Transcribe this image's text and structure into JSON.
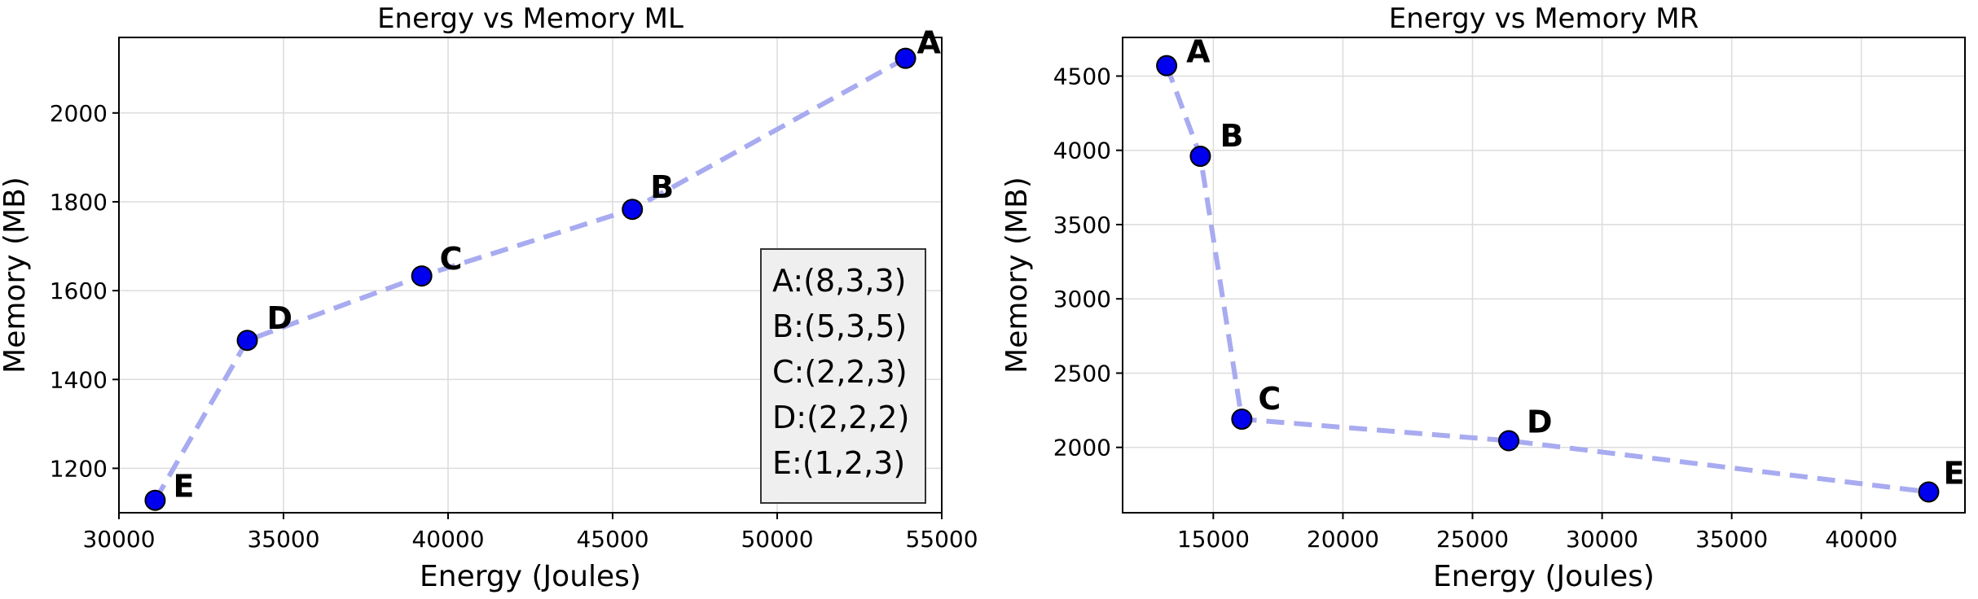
{
  "chart_data": [
    {
      "type": "scatter",
      "title": "Energy vs Memory ML",
      "xlabel": "Energy (Joules)",
      "ylabel": "Memory (MB)",
      "xlim": [
        30000,
        55000
      ],
      "ylim": [
        1100,
        2170
      ],
      "xticks": [
        30000,
        35000,
        40000,
        45000,
        50000,
        55000
      ],
      "yticks": [
        1200,
        1400,
        1600,
        1800,
        2000
      ],
      "grid": true,
      "point_color": "#0000ee",
      "line_color": "#a8abf0",
      "points": [
        {
          "label": "E",
          "x": 31100,
          "y": 1128
        },
        {
          "label": "D",
          "x": 33900,
          "y": 1488
        },
        {
          "label": "C",
          "x": 39200,
          "y": 1633
        },
        {
          "label": "B",
          "x": 45600,
          "y": 1783
        },
        {
          "label": "A",
          "x": 53900,
          "y": 2123
        }
      ],
      "legend_box": {
        "placement": "bottom-right",
        "entries": [
          "A:(8,3,3)",
          "B:(5,3,5)",
          "C:(2,2,3)",
          "D:(2,2,2)",
          "E:(1,2,3)"
        ]
      }
    },
    {
      "type": "scatter",
      "title": "Energy vs Memory MR",
      "xlabel": "Energy (Joules)",
      "ylabel": "Memory (MB)",
      "xlim": [
        11500,
        44000
      ],
      "ylim": [
        1560,
        4760
      ],
      "xticks": [
        15000,
        20000,
        25000,
        30000,
        35000,
        40000
      ],
      "yticks": [
        2000,
        2500,
        3000,
        3500,
        4000,
        4500
      ],
      "grid": true,
      "point_color": "#0000ee",
      "line_color": "#a8abf0",
      "points": [
        {
          "label": "A",
          "x": 13200,
          "y": 4570
        },
        {
          "label": "B",
          "x": 14500,
          "y": 3960
        },
        {
          "label": "C",
          "x": 16100,
          "y": 2190
        },
        {
          "label": "D",
          "x": 26400,
          "y": 2045
        },
        {
          "label": "E",
          "x": 42600,
          "y": 1700
        }
      ]
    }
  ]
}
